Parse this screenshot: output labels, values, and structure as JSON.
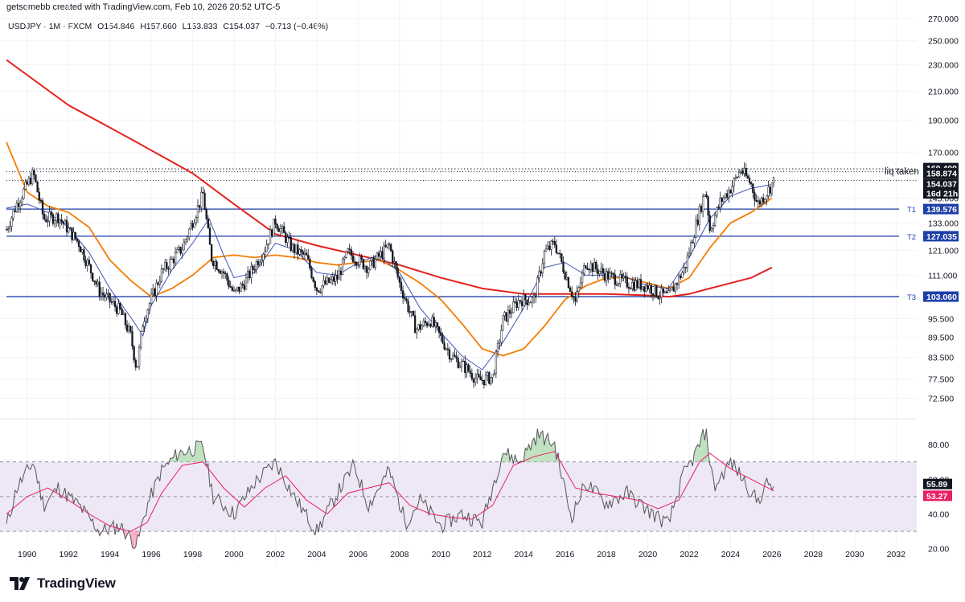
{
  "header": {
    "credit": "getsomebb created with TradingView.com, Feb 10, 2026 20:52 UTC-5"
  },
  "symbol": {
    "ticker": "USDJPY · 1M · FXCM",
    "open": "O154.846",
    "high": "H157.660",
    "low": "L153.833",
    "close": "C154.037",
    "change": "−0.713 (−0.46%)"
  },
  "logo": {
    "text": "TradingView",
    "icon": "tradingview-logo-icon"
  },
  "colors": {
    "candle": "#131722",
    "ma_red": "#e5221b",
    "ma_orange": "#f57c00",
    "ma_blue": "#3f51b5",
    "level_line": "#1e3fa8",
    "rsi_line": "#555555",
    "rsi_ma": "#e91e63",
    "rsi_band": "#ede7f6",
    "rsi_over": "#a5d6a7",
    "rsi_under": "#f48fb1",
    "grid": "#f0f3fa"
  },
  "chart_data": [
    {
      "type": "candlestick",
      "title": "USDJPY · 1M · FXCM",
      "y_scale": "log",
      "y_ticks": [
        72.5,
        77.5,
        83.5,
        89.5,
        95.5,
        103.06,
        111.0,
        121.0,
        133.0,
        145.0,
        170.0,
        190.0,
        210.0,
        230.0,
        250.0,
        270.0
      ],
      "y_tick_labels": [
        "72.500",
        "77.500",
        "83.500",
        "89.500",
        "95.500",
        "103.060",
        "111.000",
        "121.000",
        "133.000",
        "145.000",
        "170.000",
        "190.000",
        "210.000",
        "230.000",
        "250.000",
        "270.000"
      ],
      "x_ticks": [
        1990,
        1992,
        1994,
        1996,
        1998,
        2000,
        2002,
        2004,
        2006,
        2008,
        2010,
        2012,
        2014,
        2016,
        2018,
        2020,
        2022,
        2024,
        2026,
        2028,
        2030,
        2032
      ],
      "x_range": [
        1989.0,
        2033.0
      ],
      "price_path": [
        [
          1989.0,
          130
        ],
        [
          1989.5,
          142
        ],
        [
          1990.3,
          158
        ],
        [
          1990.8,
          135
        ],
        [
          1991.5,
          136
        ],
        [
          1992.5,
          124
        ],
        [
          1993.5,
          105
        ],
        [
          1994.5,
          98
        ],
        [
          1995.0,
          90
        ],
        [
          1995.3,
          80
        ],
        [
          1995.6,
          95
        ],
        [
          1996.5,
          112
        ],
        [
          1997.5,
          122
        ],
        [
          1998.5,
          147
        ],
        [
          1998.9,
          118
        ],
        [
          1999.5,
          112
        ],
        [
          2000.0,
          104
        ],
        [
          2000.5,
          108
        ],
        [
          2001.5,
          122
        ],
        [
          2002.0,
          134
        ],
        [
          2002.8,
          122
        ],
        [
          2003.5,
          118
        ],
        [
          2004.0,
          106
        ],
        [
          2005.0,
          110
        ],
        [
          2005.5,
          120
        ],
        [
          2006.5,
          114
        ],
        [
          2007.5,
          123
        ],
        [
          2008.0,
          108
        ],
        [
          2008.8,
          92
        ],
        [
          2009.5,
          95
        ],
        [
          2010.5,
          84
        ],
        [
          2011.3,
          80
        ],
        [
          2011.8,
          77
        ],
        [
          2012.5,
          78
        ],
        [
          2013.0,
          95
        ],
        [
          2013.8,
          102
        ],
        [
          2014.5,
          102
        ],
        [
          2015.0,
          120
        ],
        [
          2015.5,
          124
        ],
        [
          2016.5,
          101
        ],
        [
          2017.0,
          116
        ],
        [
          2018.0,
          111
        ],
        [
          2019.0,
          108
        ],
        [
          2020.0,
          107
        ],
        [
          2020.5,
          104
        ],
        [
          2021.0,
          103
        ],
        [
          2021.8,
          114
        ],
        [
          2022.3,
          131
        ],
        [
          2022.8,
          150
        ],
        [
          2023.0,
          130
        ],
        [
          2023.5,
          143
        ],
        [
          2024.0,
          150
        ],
        [
          2024.5,
          160
        ],
        [
          2025.0,
          152
        ],
        [
          2025.3,
          142
        ],
        [
          2025.7,
          147
        ],
        [
          2026.1,
          154
        ]
      ],
      "series": [
        {
          "name": "MA red (long)",
          "color": "#e5221b",
          "points": [
            [
              1989.0,
              234
            ],
            [
              1992.0,
              200
            ],
            [
              1995.0,
              178
            ],
            [
              1998.0,
              158
            ],
            [
              2000.0,
              142
            ],
            [
              2002.0,
              128
            ],
            [
              2004.0,
              123
            ],
            [
              2006.0,
              119
            ],
            [
              2008.0,
              115
            ],
            [
              2010.0,
              110
            ],
            [
              2012.0,
              106
            ],
            [
              2014.0,
              104
            ],
            [
              2016.0,
              104
            ],
            [
              2018.0,
              104
            ],
            [
              2020.0,
              103.5
            ],
            [
              2021.0,
              103
            ],
            [
              2022.0,
              104
            ],
            [
              2023.0,
              106
            ],
            [
              2024.0,
              108
            ],
            [
              2025.0,
              110
            ],
            [
              2026.0,
              114
            ]
          ]
        },
        {
          "name": "MA orange",
          "color": "#f57c00",
          "points": [
            [
              1989.0,
              176
            ],
            [
              1990.0,
              148
            ],
            [
              1991.0,
              141
            ],
            [
              1992.0,
              138
            ],
            [
              1993.0,
              131
            ],
            [
              1994.0,
              117
            ],
            [
              1995.0,
              109
            ],
            [
              1996.0,
              103
            ],
            [
              1997.0,
              106
            ],
            [
              1998.0,
              111
            ],
            [
              1999.0,
              118
            ],
            [
              2000.0,
              119
            ],
            [
              2001.0,
              118
            ],
            [
              2002.0,
              119
            ],
            [
              2003.0,
              118
            ],
            [
              2004.0,
              116
            ],
            [
              2005.0,
              115
            ],
            [
              2006.0,
              116
            ],
            [
              2007.0,
              117
            ],
            [
              2008.0,
              113
            ],
            [
              2009.0,
              108
            ],
            [
              2010.0,
              102
            ],
            [
              2011.0,
              94
            ],
            [
              2012.0,
              86
            ],
            [
              2013.0,
              84
            ],
            [
              2014.0,
              86
            ],
            [
              2015.0,
              93
            ],
            [
              2016.0,
              102
            ],
            [
              2017.0,
              107
            ],
            [
              2018.0,
              110
            ],
            [
              2019.0,
              110
            ],
            [
              2020.0,
              108
            ],
            [
              2021.0,
              106
            ],
            [
              2022.0,
              110
            ],
            [
              2023.0,
              122
            ],
            [
              2024.0,
              133
            ],
            [
              2025.0,
              138
            ],
            [
              2026.0,
              145
            ]
          ]
        },
        {
          "name": "MA blue",
          "color": "#3f51b5",
          "points": [
            [
              1989.0,
              140
            ],
            [
              1990.0,
              142
            ],
            [
              1991.0,
              138
            ],
            [
              1992.0,
              131
            ],
            [
              1993.0,
              120
            ],
            [
              1994.0,
              106
            ],
            [
              1995.0,
              96
            ],
            [
              1995.6,
              90
            ],
            [
              1996.0,
              100
            ],
            [
              1997.0,
              113
            ],
            [
              1998.0,
              124
            ],
            [
              1998.8,
              135
            ],
            [
              1999.5,
              119
            ],
            [
              2000.0,
              110
            ],
            [
              2001.0,
              112
            ],
            [
              2002.0,
              124
            ],
            [
              2003.0,
              121
            ],
            [
              2004.0,
              112
            ],
            [
              2005.0,
              111
            ],
            [
              2006.0,
              116
            ],
            [
              2007.0,
              119
            ],
            [
              2008.0,
              112
            ],
            [
              2009.0,
              99
            ],
            [
              2010.0,
              91
            ],
            [
              2011.0,
              84
            ],
            [
              2012.0,
              80
            ],
            [
              2013.0,
              88
            ],
            [
              2014.0,
              99
            ],
            [
              2015.0,
              114
            ],
            [
              2016.0,
              116
            ],
            [
              2017.0,
              111
            ],
            [
              2018.0,
              111
            ],
            [
              2019.0,
              110
            ],
            [
              2020.0,
              107
            ],
            [
              2021.0,
              106
            ],
            [
              2022.0,
              118
            ],
            [
              2023.0,
              135
            ],
            [
              2024.0,
              146
            ],
            [
              2025.0,
              150
            ],
            [
              2026.0,
              152
            ]
          ]
        }
      ],
      "levels": [
        {
          "label": "T1",
          "value": 139.576,
          "value_label": "139.576"
        },
        {
          "label": "T2",
          "value": 127.035,
          "value_label": "127.035"
        },
        {
          "label": "T3",
          "value": 103.06,
          "value_label": "103.060"
        }
      ],
      "dotted_lines": [
        160.4,
        158.874,
        154.037
      ],
      "annotations": [
        "liq taken"
      ],
      "price_tags": [
        {
          "label": "160.400",
          "value": 160.4
        },
        {
          "label": "158.874",
          "value": 158.874
        },
        {
          "label": "154.037",
          "value": 154.037
        },
        {
          "label": "16d 21h",
          "value": 151.2
        }
      ]
    },
    {
      "type": "line",
      "title": "RSI",
      "y_ticks": [
        20,
        40,
        60,
        80
      ],
      "y_tick_labels": [
        "20.00",
        "40.00",
        "60.00",
        "80.00"
      ],
      "bands": [
        30,
        50,
        70
      ],
      "series": [
        {
          "name": "RSI",
          "color": "#555555",
          "points": [
            [
              1989.0,
              33
            ],
            [
              1989.5,
              55
            ],
            [
              1990.3,
              70
            ],
            [
              1990.8,
              45
            ],
            [
              1991.5,
              55
            ],
            [
              1992.5,
              45
            ],
            [
              1993.5,
              30
            ],
            [
              1994.5,
              33
            ],
            [
              1995.3,
              22
            ],
            [
              1995.8,
              45
            ],
            [
              1996.5,
              65
            ],
            [
              1997.3,
              75
            ],
            [
              1998.5,
              79
            ],
            [
              1999.0,
              50
            ],
            [
              2000.0,
              40
            ],
            [
              2001.0,
              58
            ],
            [
              2002.0,
              70
            ],
            [
              2003.0,
              48
            ],
            [
              2004.0,
              30
            ],
            [
              2005.0,
              52
            ],
            [
              2005.8,
              68
            ],
            [
              2006.5,
              45
            ],
            [
              2007.5,
              65
            ],
            [
              2008.3,
              35
            ],
            [
              2009.0,
              48
            ],
            [
              2010.0,
              33
            ],
            [
              2011.0,
              40
            ],
            [
              2012.0,
              35
            ],
            [
              2013.0,
              76
            ],
            [
              2013.8,
              70
            ],
            [
              2014.7,
              86
            ],
            [
              2015.5,
              80
            ],
            [
              2016.3,
              38
            ],
            [
              2017.0,
              58
            ],
            [
              2018.0,
              46
            ],
            [
              2019.0,
              52
            ],
            [
              2020.0,
              42
            ],
            [
              2021.0,
              34
            ],
            [
              2021.7,
              62
            ],
            [
              2022.2,
              72
            ],
            [
              2022.8,
              88
            ],
            [
              2023.2,
              55
            ],
            [
              2024.0,
              70
            ],
            [
              2024.5,
              62
            ],
            [
              2025.3,
              47
            ],
            [
              2025.8,
              58
            ],
            [
              2026.1,
              55.89
            ]
          ]
        },
        {
          "name": "RSI MA",
          "color": "#e91e63",
          "points": [
            [
              1989.0,
              40
            ],
            [
              1990.0,
              50
            ],
            [
              1991.0,
              55
            ],
            [
              1992.0,
              48
            ],
            [
              1993.0,
              40
            ],
            [
              1994.0,
              33
            ],
            [
              1995.0,
              30
            ],
            [
              1995.8,
              35
            ],
            [
              1996.5,
              52
            ],
            [
              1997.5,
              68
            ],
            [
              1998.5,
              70
            ],
            [
              1999.5,
              55
            ],
            [
              2000.5,
              44
            ],
            [
              2001.5,
              55
            ],
            [
              2002.5,
              62
            ],
            [
              2003.5,
              48
            ],
            [
              2004.5,
              40
            ],
            [
              2005.5,
              52
            ],
            [
              2006.5,
              55
            ],
            [
              2007.5,
              58
            ],
            [
              2008.5,
              45
            ],
            [
              2009.5,
              40
            ],
            [
              2010.5,
              38
            ],
            [
              2011.5,
              37
            ],
            [
              2012.5,
              45
            ],
            [
              2013.5,
              68
            ],
            [
              2014.5,
              73
            ],
            [
              2015.5,
              76
            ],
            [
              2016.5,
              55
            ],
            [
              2017.5,
              52
            ],
            [
              2018.5,
              50
            ],
            [
              2019.5,
              48
            ],
            [
              2020.5,
              43
            ],
            [
              2021.5,
              48
            ],
            [
              2022.5,
              70
            ],
            [
              2023.0,
              75
            ],
            [
              2024.0,
              66
            ],
            [
              2025.0,
              60
            ],
            [
              2026.1,
              53.27
            ]
          ]
        }
      ],
      "value_tags": [
        {
          "label": "55.89",
          "value": 55.89,
          "color": "#131722"
        },
        {
          "label": "53.27",
          "value": 53.27,
          "color": "#e91e63"
        }
      ]
    }
  ]
}
